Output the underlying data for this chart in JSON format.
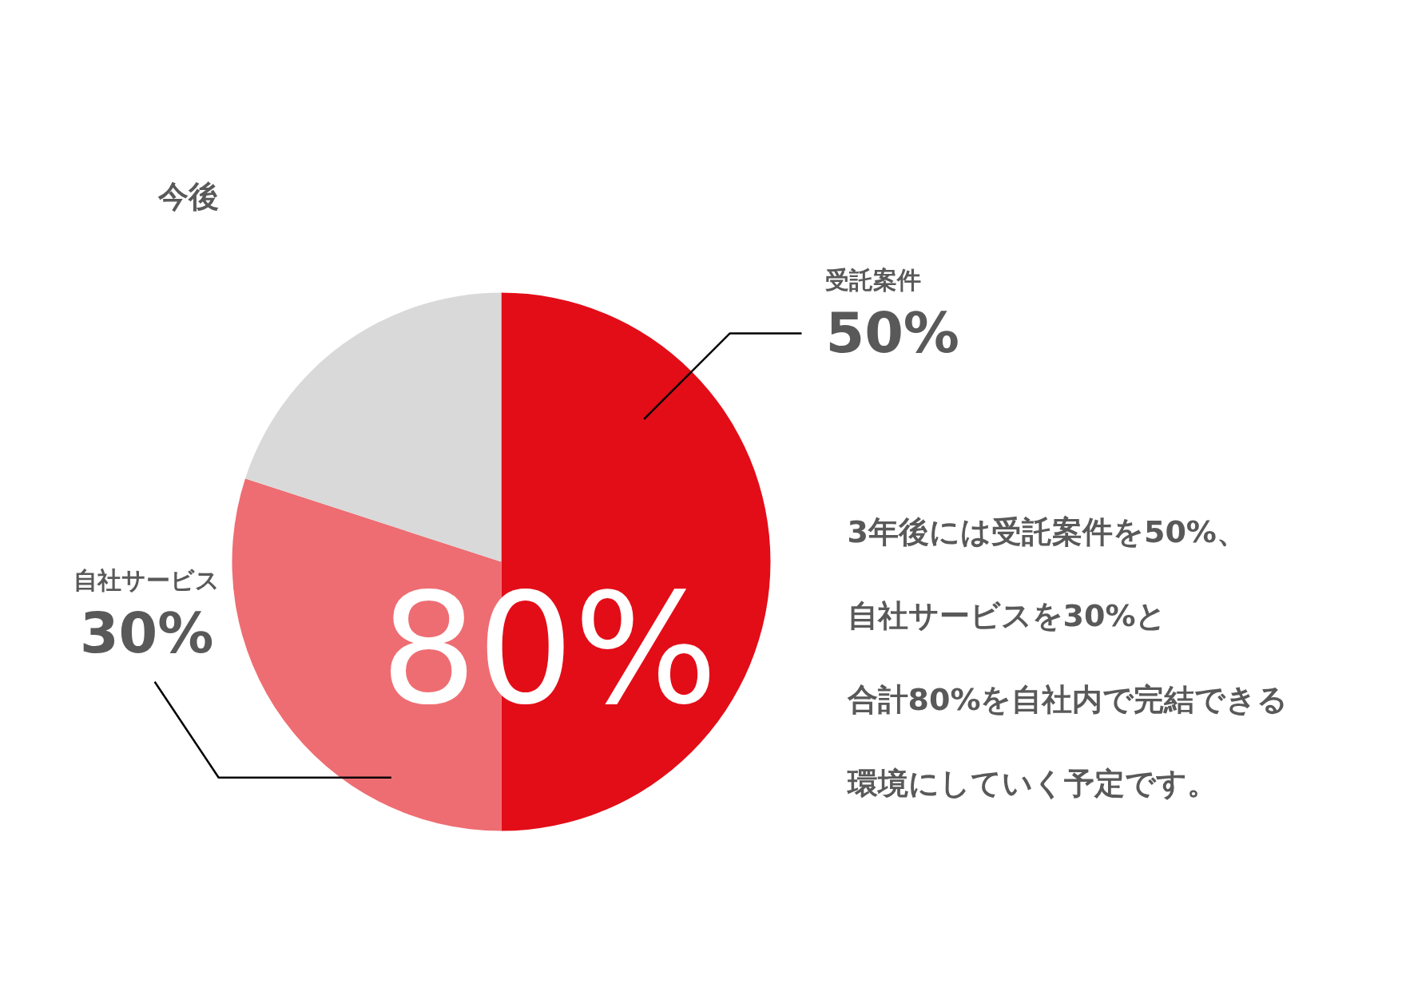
{
  "chart_data": {
    "type": "pie",
    "title": "今後",
    "categories": [
      "受託案件",
      "自社サービス",
      null
    ],
    "values": [
      50,
      30,
      20
    ],
    "colors": [
      "#e30d18",
      "#ee6d72",
      "#d9d9d9"
    ],
    "value_labels": [
      "50%",
      "30%",
      null
    ],
    "annotations": [
      {
        "text": "80%"
      },
      "3年後には受託案件を50%、",
      "自社サービスを30%と",
      "合計80%を自社内で完結できる",
      "環境にしていく予定です。"
    ]
  }
}
